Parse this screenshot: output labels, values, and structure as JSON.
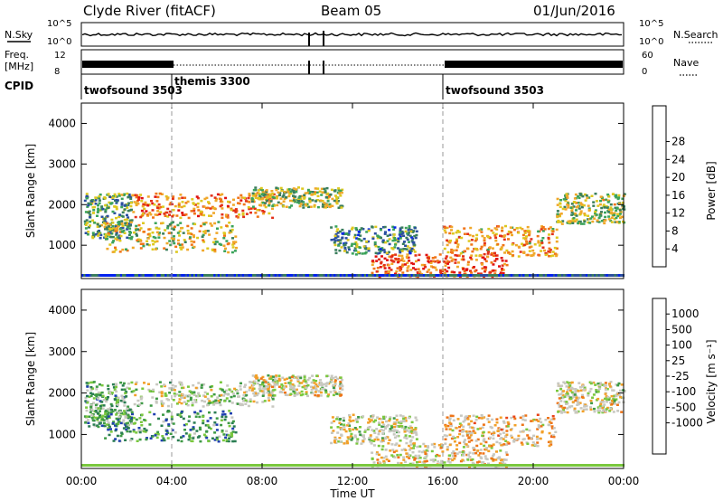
{
  "header": {
    "station": "Clyde River (fitACF)",
    "beam": "Beam 05",
    "date": "01/Jun/2016"
  },
  "status": {
    "nsky_label": "N.Sky",
    "nsky_ticks": [
      "10^5",
      "10^0"
    ],
    "nsearch_label": "N.Search",
    "nsearch_ticks": [
      "10^5",
      "10^0"
    ],
    "freq_label": "Freq.",
    "freq_unit": "[MHz]",
    "freq_ticks": [
      "12",
      "8"
    ],
    "nave_label": "Nave",
    "nave_ticks": [
      "60",
      "0"
    ],
    "cpid_label": "CPID",
    "cpid_segments": [
      {
        "name": "twofsound 3503",
        "start_h": 0,
        "end_h": 4
      },
      {
        "name": "themis 3300",
        "start_h": 4,
        "end_h": 16
      },
      {
        "name": "twofsound 3503",
        "start_h": 16,
        "end_h": 24
      }
    ]
  },
  "chart_data": [
    {
      "type": "heatmap",
      "panel": "power",
      "ylabel": "Slant Range [km]",
      "ylim": [
        180,
        4500
      ],
      "yticks": [
        1000,
        2000,
        3000,
        4000
      ],
      "xlim_h": [
        0,
        24
      ],
      "colorbar_label": "Power [dB]",
      "colorbar_ticks": [
        "4",
        "8",
        "12",
        "16",
        "20",
        "24",
        "28"
      ],
      "colorbar_colors": [
        "#0022ee",
        "#2b4fa0",
        "#3a7e5c",
        "#3aa35a",
        "#ddc81e",
        "#f0a72a",
        "#f07418",
        "#e33018",
        "#e01010"
      ],
      "echo_regions": [
        {
          "t": [
            0.1,
            2.2
          ],
          "r": [
            1200,
            2300
          ],
          "level": 0.35
        },
        {
          "t": [
            2.2,
            8.5
          ],
          "r": [
            1700,
            2300
          ],
          "level": 0.7
        },
        {
          "t": [
            7.5,
            11.5
          ],
          "r": [
            1950,
            2450
          ],
          "level": 0.45
        },
        {
          "t": [
            1.0,
            6.8
          ],
          "r": [
            850,
            1600
          ],
          "level": 0.5
        },
        {
          "t": [
            11.0,
            14.8
          ],
          "r": [
            800,
            1500
          ],
          "level": 0.3
        },
        {
          "t": [
            12.8,
            18.8
          ],
          "r": [
            250,
            800
          ],
          "level": 0.8
        },
        {
          "t": [
            16.0,
            21.0
          ],
          "r": [
            750,
            1500
          ],
          "level": 0.65
        },
        {
          "t": [
            21.0,
            24.0
          ],
          "r": [
            1550,
            2300
          ],
          "level": 0.45
        }
      ]
    },
    {
      "type": "heatmap",
      "panel": "velocity",
      "ylabel": "Slant Range [km]",
      "ylim": [
        180,
        4500
      ],
      "yticks": [
        1000,
        2000,
        3000,
        4000
      ],
      "xlim_h": [
        0,
        24
      ],
      "xlabel": "Time UT",
      "xticks": [
        "00:00",
        "04:00",
        "08:00",
        "12:00",
        "16:00",
        "20:00",
        "00:00"
      ],
      "colorbar_label": "Velocity [m s⁻¹]",
      "colorbar_ticks": [
        "1000",
        "500",
        "100",
        "25",
        "-25",
        "-100",
        "-500",
        "-1000"
      ],
      "colorbar_colors": [
        "#1f3fb0",
        "#2a7d52",
        "#3e9a45",
        "#7ac83e",
        "#c8c8c0",
        "#c8c8c0",
        "#f2a028",
        "#ee7418",
        "#e84418",
        "#e01010"
      ],
      "echo_regions": [
        {
          "t": [
            0.1,
            2.2
          ],
          "r": [
            1200,
            2300
          ],
          "level": 0.3
        },
        {
          "t": [
            2.2,
            8.5
          ],
          "r": [
            1700,
            2300
          ],
          "level": 0.42
        },
        {
          "t": [
            7.5,
            11.5
          ],
          "r": [
            1950,
            2450
          ],
          "level": 0.5
        },
        {
          "t": [
            1.0,
            6.8
          ],
          "r": [
            850,
            1600
          ],
          "level": 0.22
        },
        {
          "t": [
            11.0,
            14.8
          ],
          "r": [
            800,
            1500
          ],
          "level": 0.48
        },
        {
          "t": [
            12.8,
            18.8
          ],
          "r": [
            250,
            800
          ],
          "level": 0.55
        },
        {
          "t": [
            16.0,
            21.0
          ],
          "r": [
            750,
            1500
          ],
          "level": 0.6
        },
        {
          "t": [
            21.0,
            24.0
          ],
          "r": [
            1550,
            2300
          ],
          "level": 0.5
        }
      ]
    }
  ]
}
